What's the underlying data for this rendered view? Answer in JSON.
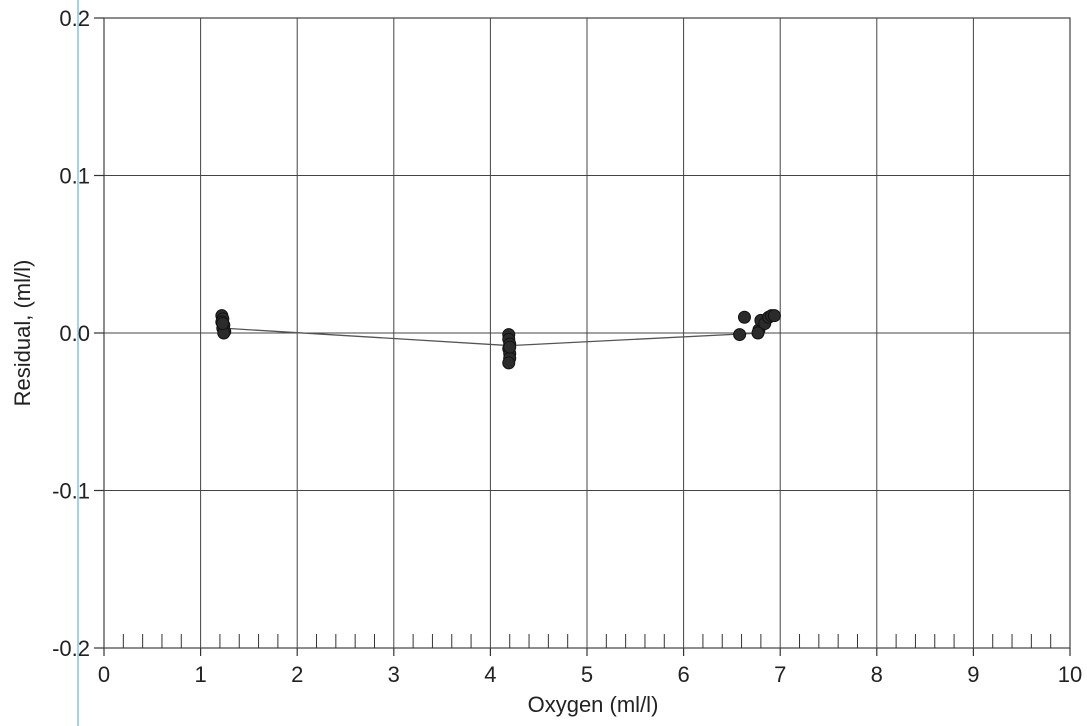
{
  "chart_data": {
    "type": "scatter",
    "title": "",
    "xlabel": "Oxygen (ml/l)",
    "ylabel": "Residual, (ml/l)",
    "xlim": [
      0,
      10
    ],
    "ylim": [
      -0.2,
      0.2
    ],
    "x_ticks": [
      0,
      1,
      2,
      3,
      4,
      5,
      6,
      7,
      8,
      9,
      10
    ],
    "x_tick_labels": [
      "0",
      "1",
      "2",
      "3",
      "4",
      "5",
      "6",
      "7",
      "8",
      "9",
      "10"
    ],
    "y_ticks": [
      -0.2,
      -0.1,
      0.0,
      0.1,
      0.2
    ],
    "y_tick_labels": [
      "-0.2",
      "-0.1",
      "0.0",
      "0.1",
      "0.2"
    ],
    "minor_x_tick_step": 0.2,
    "grid": true,
    "series": [
      {
        "type": "scatter",
        "color": "#2b2b2b",
        "x": [
          1.22,
          1.23,
          1.22,
          1.24,
          1.23,
          1.25,
          1.24,
          1.23,
          4.19,
          4.19,
          4.2,
          4.19,
          4.2,
          4.2,
          4.19,
          4.2,
          6.58,
          6.63,
          6.78,
          6.8,
          6.84,
          6.88,
          6.91,
          6.94,
          6.77
        ],
        "y": [
          0.011,
          0.009,
          0.007,
          0.005,
          0.003,
          0.001,
          0.0,
          0.006,
          -0.001,
          -0.004,
          -0.007,
          -0.01,
          -0.013,
          -0.016,
          -0.019,
          -0.009,
          -0.001,
          0.01,
          0.002,
          0.008,
          0.006,
          0.01,
          0.011,
          0.011,
          0.0
        ]
      },
      {
        "type": "line",
        "color": "#555555",
        "x": [
          1.25,
          4.2,
          6.8
        ],
        "y": [
          0.003,
          -0.008,
          0.0
        ]
      }
    ]
  }
}
